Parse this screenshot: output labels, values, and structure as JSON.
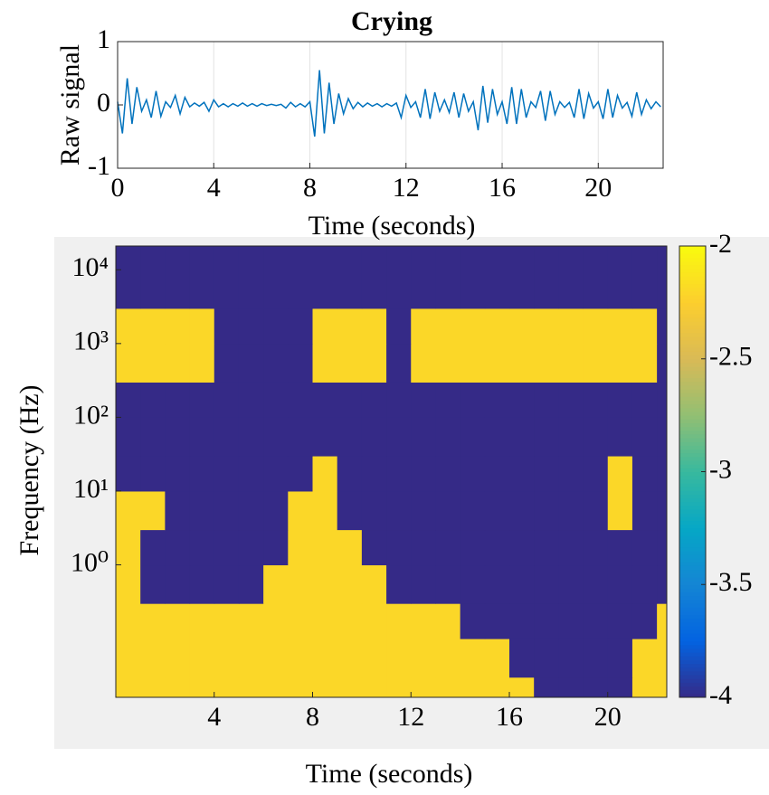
{
  "chart_data": [
    {
      "type": "line",
      "title": "Crying",
      "xlabel": "Time (seconds)",
      "ylabel": "Raw signal",
      "color": "#0072bd",
      "x": [
        0,
        0.2,
        0.4,
        0.6,
        0.8,
        1,
        1.2,
        1.4,
        1.6,
        1.8,
        2,
        2.2,
        2.4,
        2.6,
        2.8,
        3,
        3.2,
        3.4,
        3.6,
        3.8,
        4,
        4.2,
        4.4,
        4.6,
        4.8,
        5,
        5.2,
        5.4,
        5.6,
        5.8,
        6,
        6.2,
        6.4,
        6.6,
        6.8,
        7,
        7.2,
        7.4,
        7.6,
        7.8,
        8,
        8.2,
        8.4,
        8.6,
        8.8,
        9,
        9.2,
        9.4,
        9.6,
        9.8,
        10,
        10.2,
        10.4,
        10.6,
        10.8,
        11,
        11.2,
        11.4,
        11.6,
        11.8,
        12,
        12.2,
        12.4,
        12.6,
        12.8,
        13,
        13.2,
        13.4,
        13.6,
        13.8,
        14,
        14.2,
        14.4,
        14.6,
        14.8,
        15,
        15.2,
        15.4,
        15.6,
        15.8,
        16,
        16.2,
        16.4,
        16.6,
        16.8,
        17,
        17.2,
        17.4,
        17.6,
        17.8,
        18,
        18.2,
        18.4,
        18.6,
        18.8,
        19,
        19.2,
        19.4,
        19.6,
        19.8,
        20,
        20.2,
        20.4,
        20.6,
        20.8,
        21,
        21.2,
        21.4,
        21.6,
        21.8,
        22,
        22.2,
        22.4,
        22.6
      ],
      "values": [
        0.05,
        -0.45,
        0.42,
        -0.3,
        0.28,
        -0.1,
        0.08,
        -0.2,
        0.22,
        -0.18,
        0.05,
        -0.04,
        0.15,
        -0.14,
        0.12,
        -0.03,
        0.03,
        -0.02,
        0.04,
        -0.1,
        0.08,
        -0.03,
        0.02,
        -0.03,
        0.02,
        -0.02,
        0.03,
        -0.02,
        0.02,
        -0.02,
        0.02,
        -0.01,
        0.01,
        -0.01,
        0.01,
        -0.05,
        0.04,
        -0.03,
        0.02,
        -0.03,
        0.05,
        -0.5,
        0.55,
        -0.45,
        0.35,
        -0.3,
        0.18,
        -0.14,
        0.1,
        -0.06,
        0.04,
        -0.03,
        0.03,
        -0.02,
        0.02,
        -0.03,
        0.02,
        -0.02,
        0.03,
        -0.2,
        0.15,
        -0.04,
        0.05,
        -0.2,
        0.25,
        -0.22,
        0.2,
        -0.1,
        0.08,
        -0.12,
        0.2,
        -0.2,
        0.18,
        -0.1,
        0.05,
        -0.4,
        0.3,
        -0.28,
        0.25,
        -0.15,
        0.05,
        -0.3,
        0.28,
        -0.3,
        0.25,
        -0.2,
        0.05,
        -0.04,
        0.22,
        -0.25,
        0.22,
        -0.15,
        0.05,
        -0.04,
        0.04,
        -0.2,
        0.25,
        -0.22,
        0.18,
        -0.05,
        0.05,
        -0.22,
        0.25,
        -0.2,
        0.15,
        -0.05,
        0.04,
        -0.18,
        0.2,
        -0.15,
        0.08,
        -0.06,
        0.05,
        -0.03
      ],
      "xlim": [
        0,
        22.7
      ],
      "ylim": [
        -1,
        1
      ],
      "xticks": [
        0,
        4,
        8,
        12,
        16,
        20
      ],
      "yticks": [
        -1,
        0,
        1
      ],
      "grid": true
    },
    {
      "type": "heatmap",
      "xlabel": "Time (seconds)",
      "ylabel": "Frequency (Hz)",
      "log_y": true,
      "x_bins": [
        0,
        1,
        2,
        3,
        4,
        5,
        6,
        7,
        8,
        9,
        10,
        11,
        12,
        13,
        14,
        15,
        16,
        17,
        18,
        19,
        20,
        21,
        22,
        22.4
      ],
      "y_bins": [
        0.016,
        0.03,
        0.1,
        0.3,
        1,
        3,
        10,
        30,
        100,
        300,
        1000,
        3000,
        21000
      ],
      "z": [
        [
          -2.2,
          -2.2,
          -2.2,
          -2.2,
          -2.2,
          -2.2,
          -2.2,
          -2.2,
          -2.2,
          -2.2,
          -2.2,
          -2.2,
          -2.2,
          -2.2,
          -2.2,
          -2.2,
          -2.2,
          -4,
          -4,
          -4,
          -4,
          -2.2,
          -2.2
        ],
        [
          -2.2,
          -2.2,
          -2.2,
          -2.2,
          -2.2,
          -2.2,
          -2.2,
          -2.2,
          -2.2,
          -2.2,
          -2.2,
          -2.2,
          -2.2,
          -2.2,
          -2.2,
          -2.2,
          -4,
          -4,
          -4,
          -4,
          -4,
          -2.2,
          -2.2
        ],
        [
          -2.2,
          -2.2,
          -2.2,
          -2.2,
          -2.2,
          -2.2,
          -2.2,
          -2.2,
          -2.2,
          -2.2,
          -2.2,
          -2.2,
          -2.2,
          -2.2,
          -4,
          -4,
          -4,
          -4,
          -4,
          -4,
          -4,
          -4,
          -2.2
        ],
        [
          -2.2,
          -4,
          -4,
          -4,
          -4,
          -4,
          -2.2,
          -2.2,
          -2.2,
          -2.2,
          -2.2,
          -4,
          -4,
          -4,
          -4,
          -4,
          -4,
          -4,
          -4,
          -4,
          -4,
          -4,
          -4
        ],
        [
          -2.2,
          -4,
          -4,
          -4,
          -4,
          -4,
          -4,
          -2.2,
          -2.2,
          -2.2,
          -4,
          -4,
          -4,
          -4,
          -4,
          -4,
          -4,
          -4,
          -4,
          -4,
          -4,
          -4,
          -4
        ],
        [
          -2.2,
          -2.2,
          -4,
          -4,
          -4,
          -4,
          -4,
          -2.2,
          -2.2,
          -4,
          -4,
          -4,
          -4,
          -4,
          -4,
          -4,
          -4,
          -4,
          -4,
          -4,
          -2.2,
          -4,
          -4
        ],
        [
          -4,
          -4,
          -4,
          -4,
          -4,
          -4,
          -4,
          -4,
          -2.2,
          -4,
          -4,
          -4,
          -4,
          -4,
          -4,
          -4,
          -4,
          -4,
          -4,
          -4,
          -2.2,
          -4,
          -4
        ],
        [
          -4,
          -4,
          -4,
          -4,
          -4,
          -4,
          -4,
          -4,
          -4,
          -4,
          -4,
          -4,
          -4,
          -4,
          -4,
          -4,
          -4,
          -4,
          -4,
          -4,
          -4,
          -4,
          -4
        ],
        [
          -4,
          -4,
          -4,
          -4,
          -4,
          -4,
          -4,
          -4,
          -4,
          -4,
          -4,
          -4,
          -4,
          -4,
          -4,
          -4,
          -4,
          -4,
          -4,
          -4,
          -4,
          -4,
          -4
        ],
        [
          -2.2,
          -2.2,
          -2.2,
          -2.2,
          -4,
          -4,
          -4,
          -4,
          -2.2,
          -2.2,
          -2.2,
          -4,
          -2.2,
          -2.2,
          -2.2,
          -2.2,
          -2.2,
          -2.2,
          -2.2,
          -2.2,
          -2.2,
          -2.2,
          -4
        ],
        [
          -2.2,
          -2.2,
          -2.2,
          -2.2,
          -4,
          -4,
          -4,
          -4,
          -2.2,
          -2.2,
          -2.2,
          -4,
          -2.2,
          -2.2,
          -2.2,
          -2.2,
          -2.2,
          -2.2,
          -2.2,
          -2.2,
          -2.2,
          -2.2,
          -4
        ],
        [
          -4,
          -4,
          -4,
          -4,
          -4,
          -4,
          -4,
          -4,
          -4,
          -4,
          -4,
          -4,
          -4,
          -4,
          -4,
          -4,
          -4,
          -4,
          -4,
          -4,
          -4,
          -4,
          -4
        ]
      ],
      "xlim": [
        0,
        22.4
      ],
      "ylim": [
        0.016,
        21000
      ],
      "xticks": [
        4,
        8,
        12,
        16,
        20
      ],
      "yticks": [
        {
          "value": 1,
          "label": "10⁰"
        },
        {
          "value": 10,
          "label": "10¹"
        },
        {
          "value": 100,
          "label": "10²"
        },
        {
          "value": 1000,
          "label": "10³"
        },
        {
          "value": 10000,
          "label": "10⁴"
        }
      ],
      "clim": [
        -4,
        -2
      ],
      "cticks": [
        -4,
        -3.5,
        -3,
        -2.5,
        -2
      ],
      "colormap": [
        "#352a87",
        "#0363e1",
        "#1485d4",
        "#06a7c6",
        "#38b99e",
        "#92bf73",
        "#d9ba56",
        "#fcce2e",
        "#f9fb0e"
      ]
    }
  ]
}
